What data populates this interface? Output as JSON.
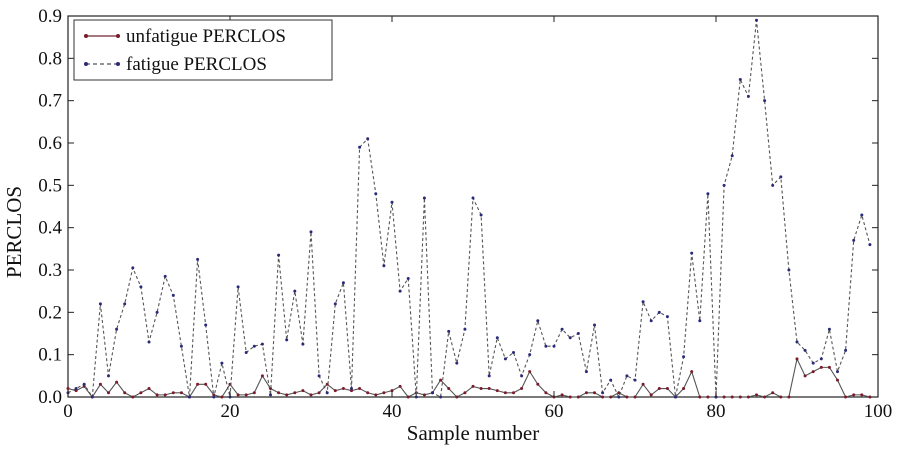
{
  "chart_data": {
    "type": "line",
    "title": "",
    "xlabel": "Sample number",
    "ylabel": "PERCLOS",
    "xlim": [
      0,
      100
    ],
    "ylim": [
      0,
      0.9
    ],
    "xticks": [
      0,
      20,
      40,
      60,
      80,
      100
    ],
    "xtick_labels": [
      "0",
      "20",
      "40",
      "60",
      "80",
      "100"
    ],
    "yticks": [
      0,
      0.1,
      0.2,
      0.3,
      0.4,
      0.5,
      0.6,
      0.7,
      0.8,
      0.9
    ],
    "ytick_labels": [
      "0.0",
      "0.1",
      "0.2",
      "0.3",
      "0.4",
      "0.5",
      "0.6",
      "0.7",
      "0.8",
      "0.9"
    ],
    "grid": false,
    "legend": "top-left",
    "series": [
      {
        "name": "unfatigue PERCLOS",
        "line_style": "solid",
        "color": "#555555",
        "marker_color": "#7a1a2a",
        "values": [
          0.02,
          0.015,
          0.025,
          0.0,
          0.03,
          0.01,
          0.035,
          0.01,
          0.0,
          0.01,
          0.02,
          0.005,
          0.005,
          0.01,
          0.01,
          0.0,
          0.03,
          0.03,
          0.005,
          0.0,
          0.03,
          0.005,
          0.005,
          0.01,
          0.05,
          0.02,
          0.01,
          0.005,
          0.01,
          0.015,
          0.005,
          0.01,
          0.03,
          0.015,
          0.02,
          0.015,
          0.02,
          0.01,
          0.005,
          0.01,
          0.015,
          0.025,
          0.0,
          0.01,
          0.005,
          0.01,
          0.04,
          0.02,
          0.0,
          0.01,
          0.025,
          0.02,
          0.02,
          0.015,
          0.01,
          0.01,
          0.02,
          0.06,
          0.03,
          0.01,
          0.0,
          0.005,
          0.0,
          0.0,
          0.01,
          0.01,
          0.0,
          0.0,
          0.01,
          0.0,
          0.0,
          0.03,
          0.005,
          0.02,
          0.02,
          0.0,
          0.02,
          0.06,
          0.0,
          0.0,
          0.0,
          0.0,
          0.0,
          0.0,
          0.0,
          0.005,
          0.0,
          0.01,
          0.0,
          0.0,
          0.09,
          0.05,
          0.06,
          0.07,
          0.07,
          0.04,
          0.0,
          0.005,
          0.005,
          0.0
        ]
      },
      {
        "name": "fatigue PERCLOS",
        "line_style": "dashed",
        "color": "#555555",
        "marker_color": "#2a2a7a",
        "values": [
          0.01,
          0.02,
          0.03,
          0.0,
          0.22,
          0.05,
          0.16,
          0.22,
          0.305,
          0.26,
          0.13,
          0.2,
          0.285,
          0.24,
          0.12,
          0.0,
          0.325,
          0.17,
          0.0,
          0.08,
          0.0,
          0.26,
          0.105,
          0.12,
          0.125,
          0.005,
          0.335,
          0.135,
          0.25,
          0.125,
          0.39,
          0.05,
          0.01,
          0.22,
          0.27,
          0.02,
          0.59,
          0.61,
          0.48,
          0.31,
          0.46,
          0.25,
          0.28,
          0.0,
          0.47,
          0.01,
          0.0,
          0.155,
          0.08,
          0.16,
          0.47,
          0.43,
          0.05,
          0.14,
          0.09,
          0.105,
          0.05,
          0.1,
          0.18,
          0.12,
          0.12,
          0.16,
          0.14,
          0.15,
          0.06,
          0.17,
          0.01,
          0.04,
          0.0,
          0.05,
          0.04,
          0.225,
          0.18,
          0.2,
          0.19,
          0.0,
          0.095,
          0.34,
          0.18,
          0.48,
          0.0,
          0.5,
          0.57,
          0.75,
          0.71,
          0.89,
          0.7,
          0.5,
          0.52,
          0.3,
          0.13,
          0.11,
          0.08,
          0.09,
          0.16,
          0.06,
          0.11,
          0.37,
          0.43,
          0.36
        ]
      }
    ]
  }
}
